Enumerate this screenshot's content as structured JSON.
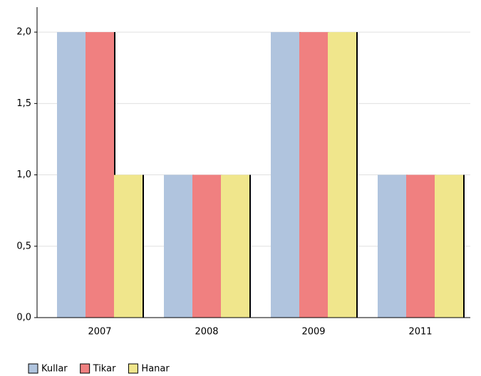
{
  "chart_data": {
    "type": "bar",
    "categories": [
      "2007",
      "2008",
      "2009",
      "2011"
    ],
    "series": [
      {
        "name": "Kullar",
        "color": "#b0c4de",
        "values": [
          2,
          1,
          2,
          1
        ]
      },
      {
        "name": "Tikar",
        "color": "#f08080",
        "values": [
          2,
          1,
          2,
          1
        ]
      },
      {
        "name": "Hanar",
        "color": "#f0e68c",
        "values": [
          1,
          1,
          2,
          1
        ]
      }
    ],
    "ylim": [
      0,
      2.2
    ],
    "yticks": [
      {
        "value": 0,
        "label": "0,0"
      },
      {
        "value": 0.5,
        "label": "0,5"
      },
      {
        "value": 1,
        "label": "1,0"
      },
      {
        "value": 1.5,
        "label": "1,5"
      },
      {
        "value": 2,
        "label": "2,0"
      }
    ],
    "grid": true,
    "legend": "bottom-left"
  }
}
